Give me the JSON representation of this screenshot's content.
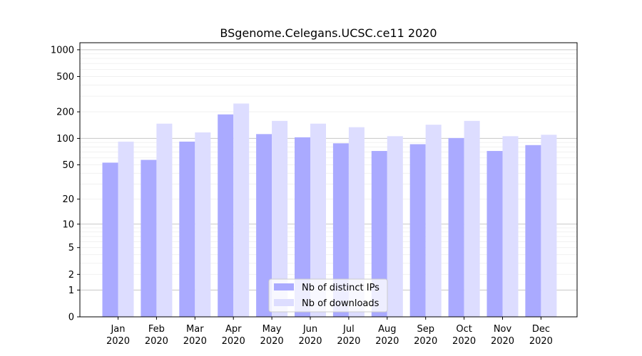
{
  "chart_data": {
    "type": "bar",
    "title": "BSgenome.Celegans.UCSC.ce11 2020",
    "xlabel": "",
    "ylabel": "",
    "yscale": "log(1+y)",
    "ylim": [
      0,
      1200
    ],
    "grid": true,
    "legend_position": "lower-center",
    "categories": [
      [
        "Jan",
        "2020"
      ],
      [
        "Feb",
        "2020"
      ],
      [
        "Mar",
        "2020"
      ],
      [
        "Apr",
        "2020"
      ],
      [
        "May",
        "2020"
      ],
      [
        "Jun",
        "2020"
      ],
      [
        "Jul",
        "2020"
      ],
      [
        "Aug",
        "2020"
      ],
      [
        "Sep",
        "2020"
      ],
      [
        "Oct",
        "2020"
      ],
      [
        "Nov",
        "2020"
      ],
      [
        "Dec",
        "2020"
      ]
    ],
    "y_ticks": [
      0,
      1,
      2,
      5,
      10,
      20,
      50,
      100,
      200,
      500,
      1000
    ],
    "series": [
      {
        "name": "Nb of distinct IPs",
        "color": "#aaaaff",
        "values": [
          53,
          57,
          92,
          187,
          112,
          103,
          88,
          72,
          86,
          101,
          72,
          84
        ]
      },
      {
        "name": "Nb of downloads",
        "color": "#ddddff",
        "values": [
          92,
          147,
          117,
          248,
          158,
          147,
          134,
          106,
          143,
          158,
          106,
          110
        ]
      }
    ]
  }
}
